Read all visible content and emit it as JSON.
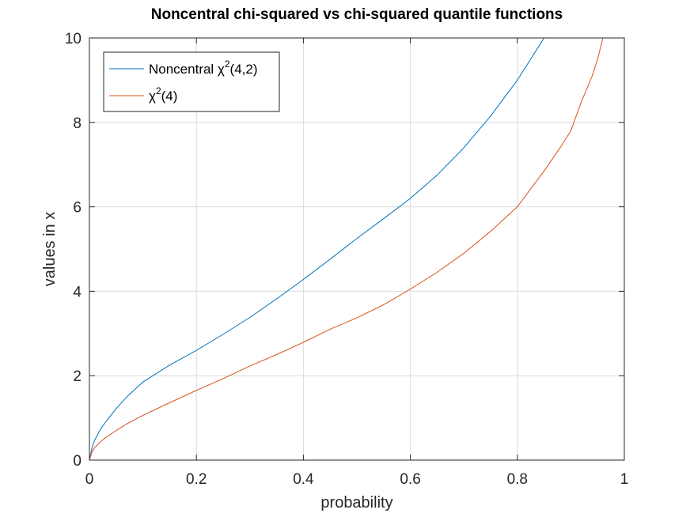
{
  "chart_data": {
    "type": "line",
    "title": "Noncentral chi-squared vs chi-squared quantile functions",
    "xlabel": "probability",
    "ylabel": "values in x",
    "xlim": [
      0,
      1
    ],
    "ylim": [
      0,
      10
    ],
    "xticks": [
      "0",
      "0.2",
      "0.4",
      "0.6",
      "0.8",
      "1"
    ],
    "yticks": [
      "0",
      "2",
      "4",
      "6",
      "8",
      "10"
    ],
    "grid": true,
    "legend_position": "top-left",
    "series": [
      {
        "name": "Noncentral χ²(4,2)",
        "legend_base": "Noncentral χ",
        "legend_sup": "2",
        "legend_suffix": "(4,2)",
        "color": "#0072BD",
        "x": [
          0,
          0.005,
          0.01,
          0.02,
          0.03,
          0.05,
          0.07,
          0.1,
          0.15,
          0.2,
          0.25,
          0.3,
          0.35,
          0.4,
          0.45,
          0.5,
          0.55,
          0.6,
          0.65,
          0.7,
          0.75,
          0.8,
          0.82,
          0.84,
          0.85,
          0.853
        ],
        "y": [
          0,
          0.3,
          0.48,
          0.72,
          0.9,
          1.22,
          1.5,
          1.85,
          2.25,
          2.6,
          2.98,
          3.38,
          3.82,
          4.28,
          4.76,
          5.25,
          5.72,
          6.2,
          6.75,
          7.4,
          8.15,
          9.0,
          9.4,
          9.8,
          10.0,
          10.1
        ]
      },
      {
        "name": "χ²(4)",
        "legend_base": "χ",
        "legend_sup": "2",
        "legend_suffix": "(4)",
        "color": "#D95319",
        "x": [
          0,
          0.005,
          0.01,
          0.02,
          0.03,
          0.05,
          0.07,
          0.1,
          0.15,
          0.2,
          0.25,
          0.3,
          0.35,
          0.4,
          0.45,
          0.5,
          0.55,
          0.6,
          0.65,
          0.7,
          0.75,
          0.8,
          0.85,
          0.88,
          0.9,
          0.92,
          0.94,
          0.95,
          0.96,
          0.963
        ],
        "y": [
          0,
          0.2,
          0.3,
          0.43,
          0.53,
          0.7,
          0.86,
          1.06,
          1.36,
          1.65,
          1.93,
          2.23,
          2.5,
          2.79,
          3.1,
          3.37,
          3.68,
          4.05,
          4.45,
          4.9,
          5.42,
          6.0,
          6.85,
          7.4,
          7.8,
          8.5,
          9.1,
          9.5,
          10.0,
          10.1
        ]
      }
    ]
  }
}
